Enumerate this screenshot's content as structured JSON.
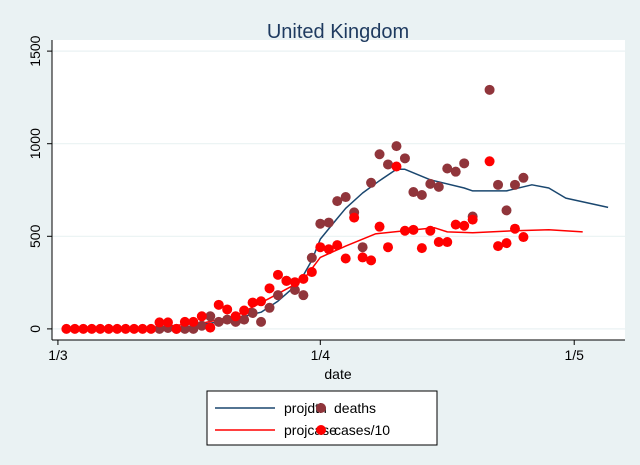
{
  "chart_data": {
    "type": "line+scatter",
    "title": "United Kingdom",
    "xlabel": "date",
    "ylabel": "",
    "x_unit": "day offset from 1 March",
    "xlim": [
      -0.7,
      67
    ],
    "ylim": [
      -60,
      1560
    ],
    "yticks": [
      0,
      500,
      1000,
      1500
    ],
    "ytick_labels": [
      "0",
      "500",
      "1000",
      "1500"
    ],
    "xticks": [
      0,
      31,
      61
    ],
    "xtick_labels": [
      "1/3",
      "1/4",
      "1/5"
    ],
    "grid": true,
    "legend": {
      "position": "bottom",
      "entries": [
        "projdth",
        "deaths",
        "projcase",
        "cases/10"
      ]
    },
    "series": [
      {
        "name": "projdth",
        "kind": "line",
        "color": "#1a476f",
        "points": [
          [
            10,
            0
          ],
          [
            15,
            10
          ],
          [
            20,
            45
          ],
          [
            24,
            90
          ],
          [
            26,
            150
          ],
          [
            28,
            230
          ],
          [
            29,
            290
          ],
          [
            30,
            370
          ],
          [
            31,
            485
          ],
          [
            33,
            596
          ],
          [
            34,
            651
          ],
          [
            36,
            734
          ],
          [
            38,
            800
          ],
          [
            40,
            862
          ],
          [
            41,
            862
          ],
          [
            44,
            805
          ],
          [
            48,
            761
          ],
          [
            49,
            745
          ],
          [
            53,
            745
          ],
          [
            56,
            778
          ],
          [
            58,
            761
          ],
          [
            60,
            706
          ],
          [
            65,
            656
          ]
        ]
      },
      {
        "name": "deaths",
        "kind": "scatter",
        "color": "#90353b",
        "points": [
          [
            12,
            0
          ],
          [
            13,
            5
          ],
          [
            14,
            0
          ],
          [
            15,
            0
          ],
          [
            16,
            0
          ],
          [
            17,
            17
          ],
          [
            18,
            68
          ],
          [
            19,
            38
          ],
          [
            20,
            50
          ],
          [
            21,
            38
          ],
          [
            22,
            50
          ],
          [
            23,
            86
          ],
          [
            24,
            38
          ],
          [
            25,
            114
          ],
          [
            26,
            182
          ],
          [
            27,
            260
          ],
          [
            28,
            210
          ],
          [
            29,
            182
          ],
          [
            30,
            384
          ],
          [
            31,
            568
          ],
          [
            32,
            574
          ],
          [
            33,
            690
          ],
          [
            34,
            712
          ],
          [
            35,
            629
          ],
          [
            36,
            441
          ],
          [
            37,
            789
          ],
          [
            38,
            943
          ],
          [
            39,
            888
          ],
          [
            40,
            987
          ],
          [
            41,
            921
          ],
          [
            42,
            739
          ],
          [
            43,
            723
          ],
          [
            44,
            783
          ],
          [
            45,
            767
          ],
          [
            46,
            866
          ],
          [
            47,
            849
          ],
          [
            48,
            894
          ],
          [
            49,
            607
          ],
          [
            51,
            1291
          ],
          [
            52,
            778
          ],
          [
            53,
            640
          ],
          [
            54,
            778
          ],
          [
            55,
            816
          ]
        ]
      },
      {
        "name": "projcase",
        "kind": "line",
        "color": "#ff0000",
        "points": [
          [
            1,
            0
          ],
          [
            12,
            10
          ],
          [
            17.5,
            35
          ],
          [
            21,
            70
          ],
          [
            25,
            165
          ],
          [
            29,
            265
          ],
          [
            31,
            386
          ],
          [
            34,
            447
          ],
          [
            37.5,
            513
          ],
          [
            41,
            530
          ],
          [
            44.5,
            546
          ],
          [
            46,
            524
          ],
          [
            49,
            519
          ],
          [
            54,
            530
          ],
          [
            58,
            535
          ],
          [
            62,
            524
          ]
        ]
      },
      {
        "name": "cases/10",
        "kind": "scatter",
        "color": "#ff0000",
        "points": [
          [
            1,
            0
          ],
          [
            2,
            0
          ],
          [
            3,
            0
          ],
          [
            4,
            0
          ],
          [
            5,
            0
          ],
          [
            6,
            0
          ],
          [
            7,
            0
          ],
          [
            8,
            0
          ],
          [
            9,
            0
          ],
          [
            10,
            0
          ],
          [
            11,
            0
          ],
          [
            12,
            35
          ],
          [
            13,
            35
          ],
          [
            14,
            0
          ],
          [
            15,
            38
          ],
          [
            16,
            38
          ],
          [
            17,
            68
          ],
          [
            18,
            7
          ],
          [
            19,
            130
          ],
          [
            20,
            105
          ],
          [
            21,
            68
          ],
          [
            22,
            99
          ],
          [
            23,
            142
          ],
          [
            24,
            149
          ],
          [
            25,
            219
          ],
          [
            26,
            292
          ],
          [
            27,
            259
          ],
          [
            28,
            252
          ],
          [
            29,
            270
          ],
          [
            30,
            307
          ],
          [
            31,
            441
          ],
          [
            32,
            430
          ],
          [
            33,
            452
          ],
          [
            34,
            380
          ],
          [
            35,
            601
          ],
          [
            36,
            386
          ],
          [
            37,
            370
          ],
          [
            38,
            552
          ],
          [
            39,
            441
          ],
          [
            40,
            877
          ],
          [
            41,
            530
          ],
          [
            42,
            535
          ],
          [
            43,
            436
          ],
          [
            44,
            530
          ],
          [
            45,
            469
          ],
          [
            46,
            469
          ],
          [
            47,
            563
          ],
          [
            48,
            557
          ],
          [
            49,
            590
          ],
          [
            51,
            905
          ],
          [
            52,
            447
          ],
          [
            53,
            463
          ],
          [
            54,
            541
          ],
          [
            55,
            496
          ]
        ]
      }
    ]
  }
}
